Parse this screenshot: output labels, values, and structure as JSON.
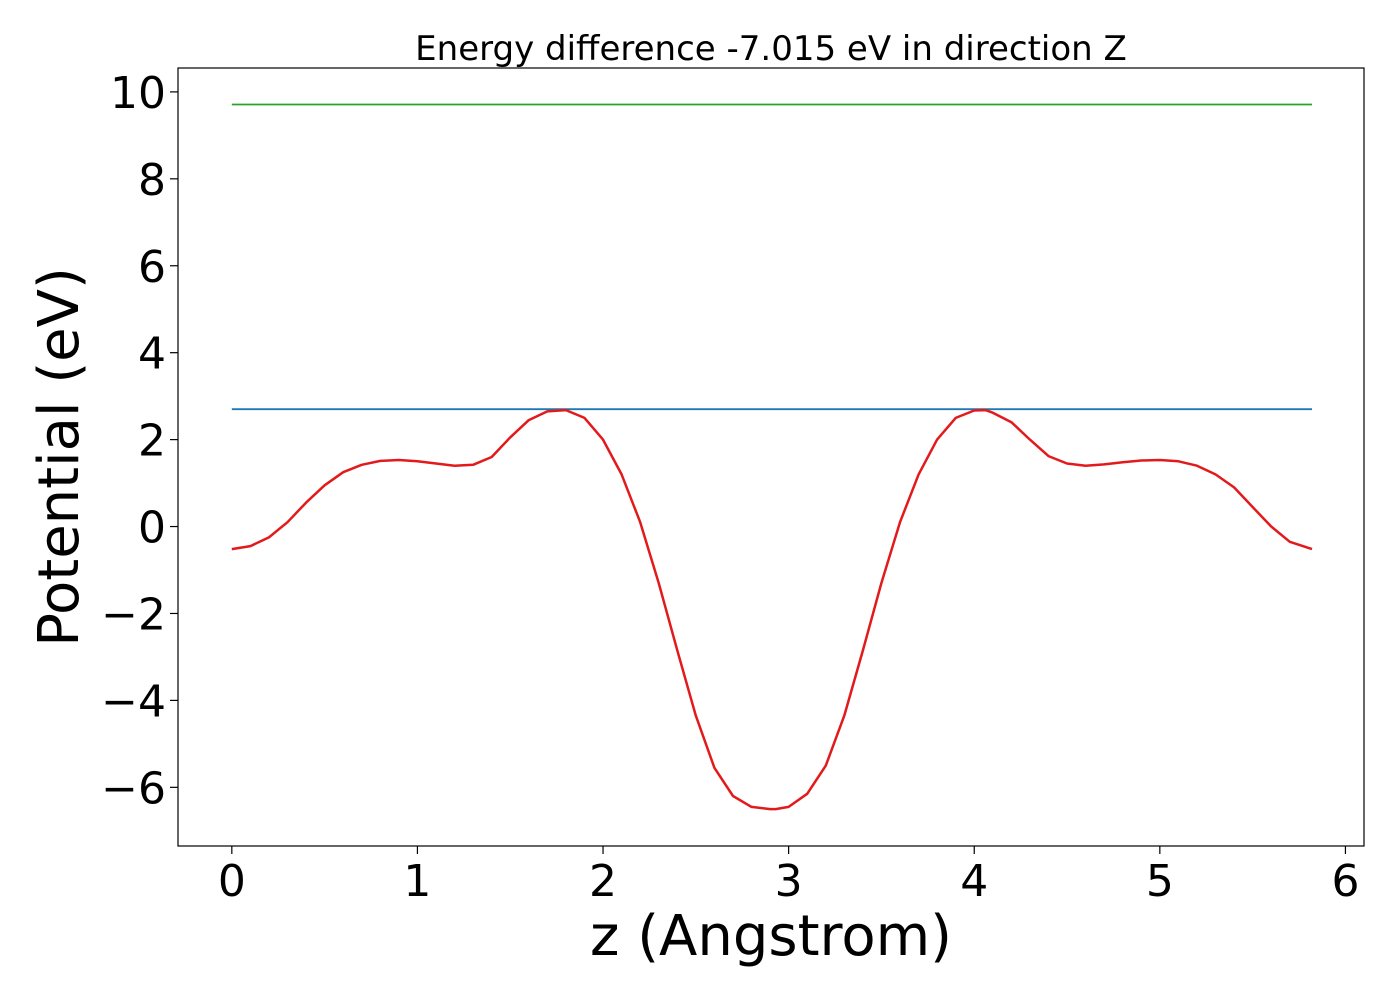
{
  "chart_data": {
    "type": "line",
    "title": "Energy difference -7.015 eV in direction Z",
    "xlabel": "z (Angstrom)",
    "ylabel": "Potential (eV)",
    "xlim": [
      -0.29,
      6.1
    ],
    "ylim": [
      -7.35,
      10.55
    ],
    "xticks": [
      0,
      1,
      2,
      3,
      4,
      5,
      6
    ],
    "xtick_labels": [
      "0",
      "1",
      "2",
      "3",
      "4",
      "5",
      "6"
    ],
    "yticks": [
      -6,
      -4,
      -2,
      0,
      2,
      4,
      6,
      8,
      10
    ],
    "ytick_labels": [
      "−6",
      "−4",
      "−2",
      "0",
      "2",
      "4",
      "6",
      "8",
      "10"
    ],
    "grid": false,
    "legend": "none",
    "series": [
      {
        "color": "#2ca02c",
        "x": [
          0,
          5.82
        ],
        "y": [
          9.71,
          9.71
        ]
      },
      {
        "color": "#1f77b4",
        "x": [
          0,
          5.82
        ],
        "y": [
          2.7,
          2.7
        ]
      },
      {
        "color": "#e31a1c",
        "x": [
          0,
          0.1,
          0.2,
          0.3,
          0.4,
          0.5,
          0.6,
          0.7,
          0.8,
          0.9,
          1.0,
          1.1,
          1.2,
          1.3,
          1.4,
          1.5,
          1.6,
          1.7,
          1.8,
          1.9,
          2.0,
          2.1,
          2.2,
          2.3,
          2.4,
          2.5,
          2.6,
          2.7,
          2.8,
          2.9,
          2.93,
          3.0,
          3.1,
          3.2,
          3.3,
          3.4,
          3.5,
          3.6,
          3.7,
          3.8,
          3.9,
          4.0,
          4.06,
          4.1,
          4.2,
          4.3,
          4.4,
          4.5,
          4.6,
          4.7,
          4.8,
          4.9,
          5.0,
          5.1,
          5.2,
          5.3,
          5.4,
          5.5,
          5.6,
          5.7,
          5.82
        ],
        "y": [
          -0.52,
          -0.45,
          -0.25,
          0.1,
          0.55,
          0.95,
          1.25,
          1.42,
          1.51,
          1.53,
          1.5,
          1.45,
          1.4,
          1.42,
          1.6,
          2.05,
          2.45,
          2.65,
          2.68,
          2.5,
          2.0,
          1.2,
          0.1,
          -1.3,
          -2.85,
          -4.35,
          -5.55,
          -6.2,
          -6.45,
          -6.5,
          -6.5,
          -6.45,
          -6.15,
          -5.5,
          -4.35,
          -2.85,
          -1.3,
          0.1,
          1.2,
          2.0,
          2.5,
          2.67,
          2.68,
          2.62,
          2.4,
          2.0,
          1.62,
          1.45,
          1.4,
          1.43,
          1.48,
          1.52,
          1.53,
          1.5,
          1.4,
          1.2,
          0.9,
          0.45,
          0.0,
          -0.35,
          -0.52
        ]
      }
    ]
  }
}
